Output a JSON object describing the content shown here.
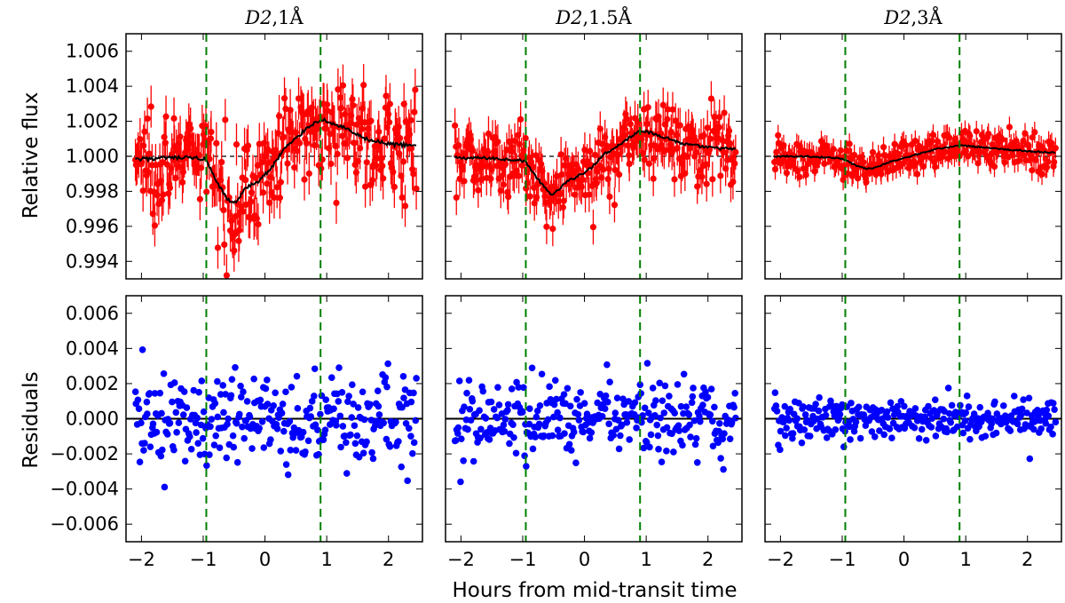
{
  "figure": {
    "xlabel": "Hours from mid-transit time",
    "ylabel_top": "Relative flux",
    "ylabel_bottom": "Residuals"
  },
  "chart_data": [
    {
      "type": "scatter",
      "panel": "top-1",
      "title_main": "D2",
      "title_rest": ",1Å",
      "ylabel": "Relative flux",
      "xlim": [
        -2.25,
        2.55
      ],
      "ylim": [
        0.993,
        1.007
      ],
      "xticks": [
        -2,
        -1,
        0,
        1,
        2
      ],
      "yticks": [
        0.994,
        0.996,
        0.998,
        1.0,
        1.002,
        1.004,
        1.006
      ],
      "ytick_labels": [
        "0.994",
        "0.996",
        "0.998",
        "1.000",
        "1.002",
        "1.004",
        "1.006"
      ],
      "reference_line": 1.0,
      "vlines": [
        -0.95,
        0.9
      ],
      "noise_amp": 0.0024,
      "errorbar": 0.0012,
      "model": {
        "x": [
          -2.1,
          -1.6,
          -1.1,
          -0.95,
          -0.8,
          -0.6,
          -0.5,
          -0.3,
          -0.1,
          0.1,
          0.3,
          0.5,
          0.7,
          0.9,
          1.0,
          1.3,
          1.6,
          2.0,
          2.45
        ],
        "y": [
          0.9998,
          0.9999,
          0.9999,
          0.9998,
          0.9986,
          0.9975,
          0.9973,
          0.9982,
          0.9986,
          0.9993,
          1.0004,
          1.001,
          1.0017,
          1.0021,
          1.002,
          1.0016,
          1.001,
          1.0007,
          1.0006
        ]
      },
      "series": [
        {
          "name": "",
          "color": "#ff0000"
        }
      ]
    },
    {
      "type": "scatter",
      "panel": "top-2",
      "title_main": "D2",
      "title_rest": ",1.5Å",
      "ylabel": "Relative flux",
      "xlim": [
        -2.25,
        2.55
      ],
      "ylim": [
        0.993,
        1.007
      ],
      "xticks": [
        -2,
        -1,
        0,
        1,
        2
      ],
      "yticks": [
        0.994,
        0.996,
        0.998,
        1.0,
        1.002,
        1.004,
        1.006
      ],
      "reference_line": 1.0,
      "vlines": [
        -0.95,
        0.9
      ],
      "noise_amp": 0.0018,
      "errorbar": 0.001,
      "model": {
        "x": [
          -2.1,
          -1.6,
          -1.1,
          -0.95,
          -0.8,
          -0.6,
          -0.5,
          -0.3,
          -0.1,
          0.1,
          0.3,
          0.5,
          0.7,
          0.9,
          1.0,
          1.3,
          1.6,
          2.0,
          2.45
        ],
        "y": [
          0.9999,
          0.9999,
          0.9998,
          0.9997,
          0.9989,
          0.998,
          0.9978,
          0.9985,
          0.9989,
          0.9993,
          1.0001,
          1.0005,
          1.001,
          1.0015,
          1.0014,
          1.0011,
          1.0007,
          1.0005,
          1.0004
        ]
      },
      "series": [
        {
          "name": "",
          "color": "#ff0000"
        }
      ]
    },
    {
      "type": "scatter",
      "panel": "top-3",
      "title_main": "D2",
      "title_rest": ",3Å",
      "ylabel": "Relative flux",
      "xlim": [
        -2.25,
        2.55
      ],
      "ylim": [
        0.993,
        1.007
      ],
      "xticks": [
        -2,
        -1,
        0,
        1,
        2
      ],
      "yticks": [
        0.994,
        0.996,
        0.998,
        1.0,
        1.002,
        1.004,
        1.006
      ],
      "reference_line": 1.0,
      "vlines": [
        -0.95,
        0.9
      ],
      "noise_amp": 0.0009,
      "errorbar": 0.0006,
      "model": {
        "x": [
          -2.1,
          -1.6,
          -1.1,
          -0.95,
          -0.8,
          -0.6,
          -0.5,
          -0.3,
          -0.1,
          0.1,
          0.3,
          0.5,
          0.7,
          0.9,
          1.0,
          1.3,
          1.6,
          2.0,
          2.45
        ],
        "y": [
          1.0,
          1.0,
          0.9999,
          0.9998,
          0.9995,
          0.9993,
          0.9993,
          0.9996,
          0.9998,
          1.0,
          1.0002,
          1.0004,
          1.0005,
          1.0006,
          1.0006,
          1.0005,
          1.0004,
          1.0003,
          1.0002
        ]
      },
      "series": [
        {
          "name": "",
          "color": "#ff0000"
        }
      ]
    },
    {
      "type": "scatter",
      "panel": "bottom-1",
      "ylabel": "Residuals",
      "xlabel": "Hours from mid-transit time",
      "xlim": [
        -2.25,
        2.55
      ],
      "ylim": [
        -0.007,
        0.007
      ],
      "xticks": [
        -2,
        -1,
        0,
        1,
        2
      ],
      "xtick_labels": [
        "−2",
        "−1",
        "0",
        "1",
        "2"
      ],
      "yticks": [
        -0.006,
        -0.004,
        -0.002,
        0.0,
        0.002,
        0.004,
        0.006
      ],
      "ytick_labels": [
        "−0.006",
        "−0.004",
        "−0.002",
        "0.000",
        "0.002",
        "0.004",
        "0.006"
      ],
      "reference_line": 0.0,
      "vlines": [
        -0.95,
        0.9
      ],
      "noise_amp": 0.0024,
      "series": [
        {
          "name": "",
          "color": "#0000ff"
        }
      ]
    },
    {
      "type": "scatter",
      "panel": "bottom-2",
      "ylabel": "Residuals",
      "xlabel": "Hours from mid-transit time",
      "xlim": [
        -2.25,
        2.55
      ],
      "ylim": [
        -0.007,
        0.007
      ],
      "xticks": [
        -2,
        -1,
        0,
        1,
        2
      ],
      "yticks": [
        -0.006,
        -0.004,
        -0.002,
        0.0,
        0.002,
        0.004,
        0.006
      ],
      "reference_line": 0.0,
      "vlines": [
        -0.95,
        0.9
      ],
      "noise_amp": 0.0017,
      "series": [
        {
          "name": "",
          "color": "#0000ff"
        }
      ]
    },
    {
      "type": "scatter",
      "panel": "bottom-3",
      "ylabel": "Residuals",
      "xlabel": "Hours from mid-transit time",
      "xlim": [
        -2.25,
        2.55
      ],
      "ylim": [
        -0.007,
        0.007
      ],
      "xticks": [
        -2,
        -1,
        0,
        1,
        2
      ],
      "yticks": [
        -0.006,
        -0.004,
        -0.002,
        0.0,
        0.002,
        0.004,
        0.006
      ],
      "reference_line": 0.0,
      "vlines": [
        -0.95,
        0.9
      ],
      "noise_amp": 0.001,
      "series": [
        {
          "name": "",
          "color": "#0000ff"
        }
      ]
    }
  ],
  "colors": {
    "flux_points": "#ff0000",
    "residual_points": "#0000ff",
    "model_line": "#000000",
    "contact_lines": "#008000"
  }
}
